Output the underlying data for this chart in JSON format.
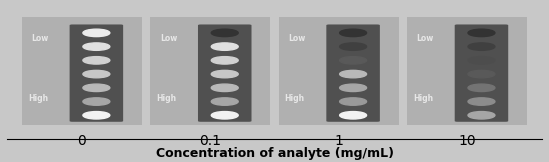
{
  "background_color": "#c8c8c8",
  "panel_bg": "#b0b0b0",
  "strip_dark_bg": "#505050",
  "labels": [
    "0",
    "0.1",
    "1",
    "10"
  ],
  "xlabel": "Concentration of analyte (mg/mL)",
  "low_label": "Low",
  "high_label": "High",
  "n_dots": 7,
  "panel_count": 4,
  "dot_brightnesses_per_panel": [
    [
      0.92,
      0.88,
      0.82,
      0.78,
      0.72,
      0.65,
      0.95
    ],
    [
      0.2,
      0.88,
      0.82,
      0.78,
      0.72,
      0.65,
      0.95
    ],
    [
      0.2,
      0.25,
      0.35,
      0.72,
      0.65,
      0.6,
      0.95
    ],
    [
      0.2,
      0.25,
      0.3,
      0.35,
      0.45,
      0.55,
      0.65
    ]
  ],
  "figsize": [
    5.49,
    1.62
  ],
  "dpi": 100
}
